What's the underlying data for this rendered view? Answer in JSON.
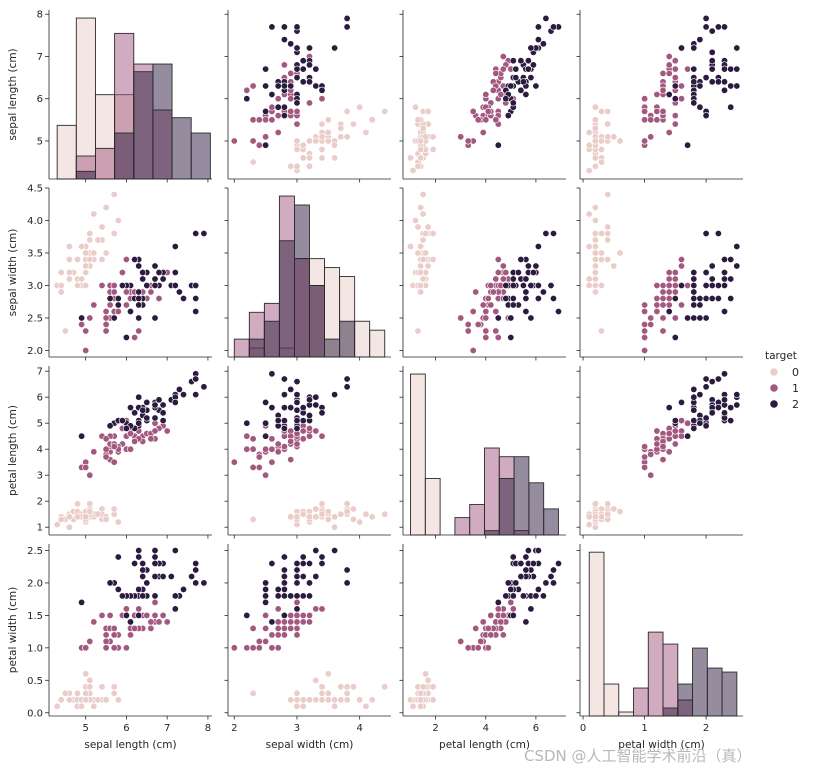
{
  "chart_data": {
    "type": "scatter",
    "title": "",
    "layout": "pairplot",
    "variables": [
      {
        "label": "sepal length (cm)",
        "lim": [
          4.1,
          8.1
        ],
        "ticks": [
          5,
          6,
          7,
          8
        ]
      },
      {
        "label": "sepal width (cm)",
        "lim": [
          1.9,
          4.5
        ],
        "ticks": [
          2.0,
          2.5,
          3.0,
          3.5,
          4.0,
          4.5
        ]
      },
      {
        "label": "petal length (cm)",
        "lim": [
          0.7,
          7.2
        ],
        "ticks": [
          1,
          2,
          3,
          4,
          5,
          6,
          7
        ]
      },
      {
        "label": "petal width (cm)",
        "lim": [
          -0.05,
          2.6
        ],
        "ticks": [
          0.0,
          0.5,
          1.0,
          1.5,
          2.0,
          2.5
        ]
      }
    ],
    "x_tick_labels": [
      [
        "5",
        "6",
        "7",
        "8"
      ],
      [
        "2",
        "3",
        "4"
      ],
      [
        "2",
        "4",
        "6"
      ],
      [
        "0",
        "1",
        "2"
      ]
    ],
    "y_tick_labels": [
      [
        "5",
        "6",
        "7",
        "8"
      ],
      [
        "2.0",
        "2.5",
        "3.0",
        "3.5",
        "4.0",
        "4.5"
      ],
      [
        "1",
        "2",
        "3",
        "4",
        "5",
        "6",
        "7"
      ],
      [
        "0.0",
        "0.5",
        "1.0",
        "1.5",
        "2.0",
        "2.5"
      ]
    ],
    "x_tick_values": [
      [
        5,
        6,
        7,
        8
      ],
      [
        2,
        3,
        4
      ],
      [
        2,
        4,
        6
      ],
      [
        0,
        1,
        2
      ]
    ],
    "legend": {
      "title": "target",
      "labels": [
        "0",
        "1",
        "2"
      ],
      "placement": "right"
    },
    "hue_colors": [
      "#eacdc8",
      "#a3587f",
      "#2b1b3f"
    ],
    "hist_fill_alpha": 0.5,
    "series": [
      {
        "name": "0",
        "points": [
          [
            5.1,
            3.5,
            1.4,
            0.2
          ],
          [
            4.9,
            3.0,
            1.4,
            0.2
          ],
          [
            4.7,
            3.2,
            1.3,
            0.2
          ],
          [
            4.6,
            3.1,
            1.5,
            0.2
          ],
          [
            5.0,
            3.6,
            1.4,
            0.2
          ],
          [
            5.4,
            3.9,
            1.7,
            0.4
          ],
          [
            4.6,
            3.4,
            1.4,
            0.3
          ],
          [
            5.0,
            3.4,
            1.5,
            0.2
          ],
          [
            4.4,
            2.9,
            1.4,
            0.2
          ],
          [
            4.9,
            3.1,
            1.5,
            0.1
          ],
          [
            5.4,
            3.7,
            1.5,
            0.2
          ],
          [
            4.8,
            3.4,
            1.6,
            0.2
          ],
          [
            4.8,
            3.0,
            1.4,
            0.1
          ],
          [
            4.3,
            3.0,
            1.1,
            0.1
          ],
          [
            5.8,
            4.0,
            1.2,
            0.2
          ],
          [
            5.7,
            4.4,
            1.5,
            0.4
          ],
          [
            5.4,
            3.9,
            1.3,
            0.4
          ],
          [
            5.1,
            3.5,
            1.4,
            0.3
          ],
          [
            5.7,
            3.8,
            1.7,
            0.3
          ],
          [
            5.1,
            3.8,
            1.5,
            0.3
          ],
          [
            5.4,
            3.4,
            1.7,
            0.2
          ],
          [
            5.1,
            3.7,
            1.5,
            0.4
          ],
          [
            4.6,
            3.6,
            1.0,
            0.2
          ],
          [
            5.1,
            3.3,
            1.7,
            0.5
          ],
          [
            4.8,
            3.4,
            1.9,
            0.2
          ],
          [
            5.0,
            3.0,
            1.6,
            0.2
          ],
          [
            5.0,
            3.4,
            1.6,
            0.4
          ],
          [
            5.2,
            3.5,
            1.5,
            0.2
          ],
          [
            5.2,
            3.4,
            1.4,
            0.2
          ],
          [
            4.7,
            3.2,
            1.6,
            0.2
          ],
          [
            4.8,
            3.1,
            1.6,
            0.2
          ],
          [
            5.4,
            3.4,
            1.5,
            0.4
          ],
          [
            5.2,
            4.1,
            1.5,
            0.1
          ],
          [
            5.5,
            4.2,
            1.4,
            0.2
          ],
          [
            4.9,
            3.1,
            1.5,
            0.2
          ],
          [
            5.0,
            3.2,
            1.2,
            0.2
          ],
          [
            5.5,
            3.5,
            1.3,
            0.2
          ],
          [
            4.9,
            3.6,
            1.4,
            0.1
          ],
          [
            4.4,
            3.0,
            1.3,
            0.2
          ],
          [
            5.1,
            3.4,
            1.5,
            0.2
          ],
          [
            5.0,
            3.5,
            1.3,
            0.3
          ],
          [
            4.5,
            2.3,
            1.3,
            0.3
          ],
          [
            4.4,
            3.2,
            1.3,
            0.2
          ],
          [
            5.0,
            3.5,
            1.6,
            0.6
          ],
          [
            5.1,
            3.8,
            1.9,
            0.4
          ],
          [
            4.8,
            3.0,
            1.4,
            0.3
          ],
          [
            5.1,
            3.8,
            1.6,
            0.2
          ],
          [
            4.6,
            3.2,
            1.4,
            0.2
          ],
          [
            5.3,
            3.7,
            1.5,
            0.2
          ],
          [
            5.0,
            3.3,
            1.4,
            0.2
          ]
        ]
      },
      {
        "name": "1",
        "points": [
          [
            7.0,
            3.2,
            4.7,
            1.4
          ],
          [
            6.4,
            3.2,
            4.5,
            1.5
          ],
          [
            6.9,
            3.1,
            4.9,
            1.5
          ],
          [
            5.5,
            2.3,
            4.0,
            1.3
          ],
          [
            6.5,
            2.8,
            4.6,
            1.5
          ],
          [
            5.7,
            2.8,
            4.5,
            1.3
          ],
          [
            6.3,
            3.3,
            4.7,
            1.6
          ],
          [
            4.9,
            2.4,
            3.3,
            1.0
          ],
          [
            6.6,
            2.9,
            4.6,
            1.3
          ],
          [
            5.2,
            2.7,
            3.9,
            1.4
          ],
          [
            5.0,
            2.0,
            3.5,
            1.0
          ],
          [
            5.9,
            3.0,
            4.2,
            1.5
          ],
          [
            6.0,
            2.2,
            4.0,
            1.0
          ],
          [
            6.1,
            2.9,
            4.7,
            1.4
          ],
          [
            5.6,
            2.9,
            3.6,
            1.3
          ],
          [
            6.7,
            3.1,
            4.4,
            1.4
          ],
          [
            5.6,
            3.0,
            4.5,
            1.5
          ],
          [
            5.8,
            2.7,
            4.1,
            1.0
          ],
          [
            6.2,
            2.2,
            4.5,
            1.5
          ],
          [
            5.6,
            2.5,
            3.9,
            1.1
          ],
          [
            5.9,
            3.2,
            4.8,
            1.8
          ],
          [
            6.1,
            2.8,
            4.0,
            1.3
          ],
          [
            6.3,
            2.5,
            4.9,
            1.5
          ],
          [
            6.1,
            2.8,
            4.7,
            1.2
          ],
          [
            6.4,
            2.9,
            4.3,
            1.3
          ],
          [
            6.6,
            3.0,
            4.4,
            1.4
          ],
          [
            6.8,
            2.8,
            4.8,
            1.4
          ],
          [
            6.7,
            3.0,
            5.0,
            1.7
          ],
          [
            6.0,
            2.9,
            4.5,
            1.5
          ],
          [
            5.7,
            2.6,
            3.5,
            1.0
          ],
          [
            5.5,
            2.4,
            3.8,
            1.1
          ],
          [
            5.5,
            2.4,
            3.7,
            1.0
          ],
          [
            5.8,
            2.7,
            3.9,
            1.2
          ],
          [
            6.0,
            2.7,
            5.1,
            1.6
          ],
          [
            5.4,
            3.0,
            4.5,
            1.5
          ],
          [
            6.0,
            3.4,
            4.5,
            1.6
          ],
          [
            6.7,
            3.1,
            4.7,
            1.5
          ],
          [
            6.3,
            2.3,
            4.4,
            1.3
          ],
          [
            5.6,
            3.0,
            4.1,
            1.3
          ],
          [
            5.5,
            2.5,
            4.0,
            1.3
          ],
          [
            5.5,
            2.6,
            4.4,
            1.2
          ],
          [
            6.1,
            3.0,
            4.6,
            1.4
          ],
          [
            5.8,
            2.6,
            4.0,
            1.2
          ],
          [
            5.0,
            2.3,
            3.3,
            1.0
          ],
          [
            5.6,
            2.7,
            4.2,
            1.3
          ],
          [
            5.7,
            3.0,
            4.2,
            1.2
          ],
          [
            5.7,
            2.9,
            4.2,
            1.3
          ],
          [
            6.2,
            2.9,
            4.3,
            1.3
          ],
          [
            5.1,
            2.5,
            3.0,
            1.1
          ],
          [
            5.7,
            2.8,
            4.1,
            1.3
          ]
        ]
      },
      {
        "name": "2",
        "points": [
          [
            6.3,
            3.3,
            6.0,
            2.5
          ],
          [
            5.8,
            2.7,
            5.1,
            1.9
          ],
          [
            7.1,
            3.0,
            5.9,
            2.1
          ],
          [
            6.3,
            2.9,
            5.6,
            1.8
          ],
          [
            6.5,
            3.0,
            5.8,
            2.2
          ],
          [
            7.6,
            3.0,
            6.6,
            2.1
          ],
          [
            4.9,
            2.5,
            4.5,
            1.7
          ],
          [
            7.3,
            2.9,
            6.3,
            1.8
          ],
          [
            6.7,
            2.5,
            5.8,
            1.8
          ],
          [
            7.2,
            3.6,
            6.1,
            2.5
          ],
          [
            6.5,
            3.2,
            5.1,
            2.0
          ],
          [
            6.4,
            2.7,
            5.3,
            1.9
          ],
          [
            6.8,
            3.0,
            5.5,
            2.1
          ],
          [
            5.7,
            2.5,
            5.0,
            2.0
          ],
          [
            5.8,
            2.8,
            5.1,
            2.4
          ],
          [
            6.4,
            3.2,
            5.3,
            2.3
          ],
          [
            6.5,
            3.0,
            5.5,
            1.8
          ],
          [
            7.7,
            3.8,
            6.7,
            2.2
          ],
          [
            7.7,
            2.6,
            6.9,
            2.3
          ],
          [
            6.0,
            2.2,
            5.0,
            1.5
          ],
          [
            6.9,
            3.2,
            5.7,
            2.3
          ],
          [
            5.6,
            2.8,
            4.9,
            2.0
          ],
          [
            7.7,
            2.8,
            6.7,
            2.0
          ],
          [
            6.3,
            2.7,
            4.9,
            1.8
          ],
          [
            6.7,
            3.3,
            5.7,
            2.1
          ],
          [
            7.2,
            3.2,
            6.0,
            1.8
          ],
          [
            6.2,
            2.8,
            4.8,
            1.8
          ],
          [
            6.1,
            3.0,
            4.9,
            1.8
          ],
          [
            6.4,
            2.8,
            5.6,
            2.1
          ],
          [
            7.2,
            3.0,
            5.8,
            1.6
          ],
          [
            7.4,
            2.8,
            6.1,
            1.9
          ],
          [
            7.9,
            3.8,
            6.4,
            2.0
          ],
          [
            6.4,
            2.8,
            5.6,
            2.2
          ],
          [
            6.3,
            2.8,
            5.1,
            1.5
          ],
          [
            6.1,
            2.6,
            5.6,
            1.4
          ],
          [
            7.7,
            3.0,
            6.1,
            2.3
          ],
          [
            6.3,
            3.4,
            5.6,
            2.4
          ],
          [
            6.4,
            3.1,
            5.5,
            1.8
          ],
          [
            6.0,
            3.0,
            4.8,
            1.8
          ],
          [
            6.9,
            3.1,
            5.4,
            2.1
          ],
          [
            6.7,
            3.1,
            5.6,
            2.4
          ],
          [
            6.9,
            3.1,
            5.1,
            2.3
          ],
          [
            5.8,
            2.7,
            5.1,
            1.9
          ],
          [
            6.8,
            3.2,
            5.9,
            2.3
          ],
          [
            6.7,
            3.3,
            5.7,
            2.5
          ],
          [
            6.7,
            3.0,
            5.2,
            2.3
          ],
          [
            6.3,
            2.5,
            5.0,
            1.9
          ],
          [
            6.5,
            3.0,
            5.2,
            2.0
          ],
          [
            6.2,
            3.4,
            5.4,
            2.3
          ],
          [
            5.9,
            3.0,
            5.1,
            1.8
          ]
        ]
      }
    ],
    "histograms": [
      {
        "variable": "sepal length (cm)",
        "bin_edges": [
          4.3,
          4.77,
          5.24,
          5.71,
          6.18,
          6.65,
          7.12,
          7.59,
          8.06
        ],
        "counts": [
          [
            7,
            21,
            11,
            11,
            0,
            0,
            0,
            0
          ],
          [
            0,
            3,
            4,
            19,
            15,
            9,
            0,
            0
          ],
          [
            0,
            1,
            0,
            6,
            14,
            15,
            8,
            6
          ]
        ]
      },
      {
        "variable": "sepal width (cm)",
        "bin_edges": [
          2.0,
          2.24,
          2.48,
          2.72,
          2.96,
          3.2,
          3.44,
          3.68,
          3.92,
          4.16,
          4.4
        ],
        "counts": [
          [
            0,
            1,
            0,
            1,
            11,
            11,
            10,
            9,
            4,
            3
          ],
          [
            2,
            5,
            6,
            18,
            11,
            8,
            0,
            0,
            0,
            0
          ],
          [
            0,
            2,
            4,
            13,
            17,
            8,
            2,
            4,
            0,
            0
          ]
        ]
      },
      {
        "variable": "petal length (cm)",
        "bin_edges": [
          1.0,
          1.59,
          2.18,
          2.77,
          3.36,
          3.95,
          4.54,
          5.13,
          5.72,
          6.31,
          6.9
        ],
        "counts": [
          [
            37,
            13,
            0,
            0,
            0,
            0,
            0,
            0,
            0,
            0
          ],
          [
            0,
            0,
            0,
            4,
            7,
            20,
            18,
            1,
            0,
            0
          ],
          [
            0,
            0,
            0,
            0,
            0,
            1,
            13,
            18,
            12,
            6
          ]
        ]
      },
      {
        "variable": "petal width (cm)",
        "bin_edges": [
          0.1,
          0.34,
          0.58,
          0.82,
          1.06,
          1.3,
          1.54,
          1.78,
          2.02,
          2.26,
          2.5
        ],
        "counts": [
          [
            41,
            8,
            1,
            0,
            0,
            0,
            0,
            0,
            0,
            0
          ],
          [
            0,
            0,
            0,
            7,
            21,
            18,
            4,
            0,
            0,
            0
          ],
          [
            0,
            0,
            0,
            0,
            0,
            2,
            8,
            17,
            12,
            11
          ]
        ]
      }
    ]
  },
  "watermark": "CSDN @人工智能学术前沿（真）"
}
